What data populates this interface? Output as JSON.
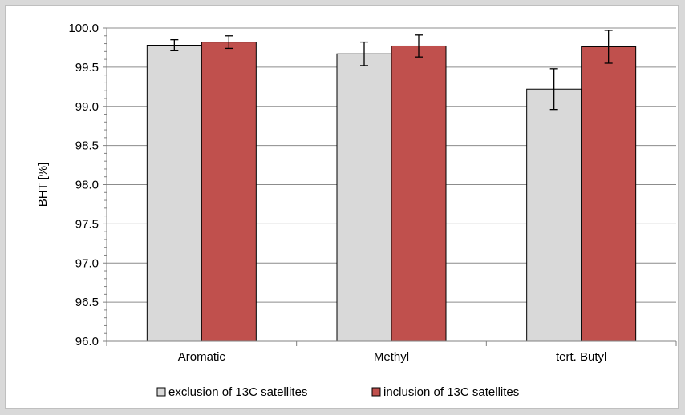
{
  "chart_data": {
    "type": "bar",
    "ylabel": "BHT [%]",
    "xlabel": "",
    "ylim": [
      96.0,
      100.0
    ],
    "ytick_step": 0.5,
    "ytick_labels": [
      "96.0",
      "96.5",
      "97.0",
      "97.5",
      "98.0",
      "98.5",
      "99.0",
      "99.5",
      "100.0"
    ],
    "categories": [
      "Aromatic",
      "Methyl",
      "tert. Butyl"
    ],
    "series": [
      {
        "name": "exclusion of 13C satellites",
        "color": "#d9d9d9",
        "values": [
          99.78,
          99.67,
          99.22
        ],
        "errors": [
          0.07,
          0.15,
          0.26
        ]
      },
      {
        "name": "inclusion of 13C satellites",
        "color": "#c0504d",
        "values": [
          99.82,
          99.77,
          99.76
        ],
        "errors": [
          0.08,
          0.14,
          0.21
        ]
      }
    ],
    "grid": true,
    "legend_position": "bottom"
  }
}
